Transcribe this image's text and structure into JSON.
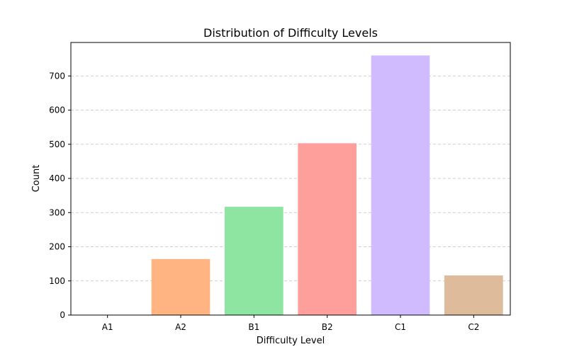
{
  "chart_data": {
    "type": "bar",
    "title": "Distribution of Difficulty Levels",
    "xlabel": "Difficulty Level",
    "ylabel": "Count",
    "categories": [
      "A1",
      "A2",
      "B1",
      "B2",
      "C1",
      "C2"
    ],
    "values": [
      0,
      164,
      317,
      503,
      760,
      116
    ],
    "colors": [
      "#a1c9f4",
      "#ffb482",
      "#8de5a1",
      "#ff9f9b",
      "#d0bbff",
      "#debb9b"
    ],
    "ylim": [
      0,
      798
    ],
    "yticks": [
      0,
      100,
      200,
      300,
      400,
      500,
      600,
      700
    ],
    "grid": "y-dashed",
    "legend": "none"
  }
}
